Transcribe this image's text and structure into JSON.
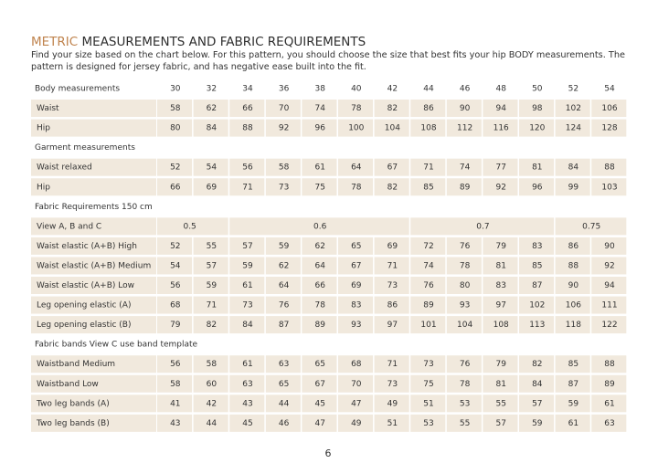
{
  "title": {
    "accent": "METRIC",
    "rest": "MEASUREMENTS AND FABRIC REQUIREMENTS"
  },
  "intro": [
    "Find your size based on the chart below. For this pattern, you should choose the size that best fits your hip BODY measurements.  The",
    "pattern is designed for jersey fabric, and has negative ease built into the fit."
  ],
  "table": {
    "sizes": [
      30,
      32,
      34,
      36,
      38,
      40,
      42,
      44,
      46,
      48,
      50,
      52,
      54
    ],
    "sections": [
      {
        "heading": "Body measurements",
        "rows": [
          {
            "label": "Waist",
            "values": [
              58,
              62,
              66,
              70,
              74,
              78,
              82,
              86,
              90,
              94,
              98,
              102,
              106
            ]
          },
          {
            "label": "Hip",
            "values": [
              80,
              84,
              88,
              92,
              96,
              100,
              104,
              108,
              112,
              116,
              120,
              124,
              128
            ]
          }
        ]
      },
      {
        "heading": "Garment measurements",
        "rows": [
          {
            "label": "Waist relaxed",
            "values": [
              52,
              54,
              56,
              58,
              61,
              64,
              67,
              71,
              74,
              77,
              81,
              84,
              88
            ]
          },
          {
            "label": "Hip",
            "values": [
              66,
              69,
              71,
              73,
              75,
              78,
              82,
              85,
              89,
              92,
              96,
              99,
              103
            ]
          }
        ]
      },
      {
        "heading": "Fabric Requirements 150 cm",
        "rows": [
          {
            "label": "View A, B and C",
            "values": [
              0.5,
              0.6,
              0.7,
              0.75
            ]
          },
          {
            "label": "Waist elastic (A+B) High",
            "values": [
              52,
              55,
              57,
              59,
              62,
              65,
              69,
              72,
              76,
              79,
              83,
              86,
              90
            ]
          },
          {
            "label": "Waist elastic (A+B) Medium",
            "values": [
              54,
              57,
              59,
              62,
              64,
              67,
              71,
              74,
              78,
              81,
              85,
              88,
              92
            ]
          },
          {
            "label": "Waist elastic (A+B) Low",
            "values": [
              56,
              59,
              61,
              64,
              66,
              69,
              73,
              76,
              80,
              83,
              87,
              90,
              94
            ]
          },
          {
            "label": "Leg opening elastic (A)",
            "values": [
              68,
              71,
              73,
              76,
              78,
              83,
              86,
              89,
              93,
              97,
              102,
              106,
              111
            ]
          },
          {
            "label": "Leg opening elastic (B)",
            "values": [
              79,
              82,
              84,
              87,
              89,
              93,
              97,
              101,
              104,
              108,
              113,
              118,
              122
            ]
          }
        ]
      },
      {
        "heading": "Fabric bands View C use band template",
        "rows": [
          {
            "label": "Waistband Medium",
            "values": [
              56,
              58,
              61,
              63,
              65,
              68,
              71,
              73,
              76,
              79,
              82,
              85,
              88
            ]
          },
          {
            "label": "Waistband Low",
            "values": [
              58,
              60,
              63,
              65,
              67,
              70,
              73,
              75,
              78,
              81,
              84,
              87,
              89
            ]
          },
          {
            "label": "Two leg bands (A)",
            "values": [
              41,
              42,
              43,
              44,
              45,
              47,
              49,
              51,
              53,
              55,
              57,
              59,
              61
            ]
          },
          {
            "label": "Two leg bands (B)",
            "values": [
              43,
              44,
              45,
              46,
              47,
              49,
              51,
              53,
              55,
              57,
              59,
              61,
              63
            ]
          }
        ]
      }
    ]
  },
  "page_number": 6
}
